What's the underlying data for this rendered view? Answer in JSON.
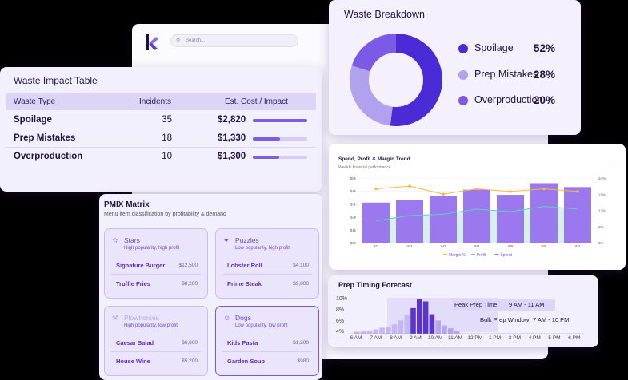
{
  "app": {
    "search_placeholder": "Search..."
  },
  "waste_impact": {
    "title": "Waste Impact Table",
    "columns": [
      "Waste Type",
      "Incidents",
      "Est. Cost / Impact"
    ],
    "rows": [
      {
        "type": "Spoilage",
        "incidents": "35",
        "cost": "$2,820",
        "impact": 1.0
      },
      {
        "type": "Prep Mistakes",
        "incidents": "18",
        "cost": "$1,330",
        "impact": 0.5
      },
      {
        "type": "Overproduction",
        "incidents": "10",
        "cost": "$1,300",
        "impact": 0.48
      }
    ]
  },
  "waste_breakdown": {
    "title": "Waste Breakdown",
    "items": [
      {
        "label": "Spoilage",
        "pct": "52%",
        "value": 52,
        "color": "#4b2bd6"
      },
      {
        "label": "Prep Mistakes",
        "pct": "28%",
        "value": 28,
        "color": "#b2a2ee"
      },
      {
        "label": "Overproduction",
        "pct": "20%",
        "value": 20,
        "color": "#7d5ae6"
      }
    ]
  },
  "spend_chart": {
    "title": "Spend, Profit & Margin Trend",
    "subtitle": "Weekly financial performance",
    "more": "...",
    "chart_data": {
      "type": "bar",
      "categories": [
        "W1",
        "W2",
        "W3",
        "W4",
        "W5",
        "W6",
        "W7"
      ],
      "y_ticks_left": [
        "$0k",
        "$1k",
        "$2k",
        "$3k",
        "$4k",
        "$5k"
      ],
      "y_ticks_right": [
        "0%",
        "6%",
        "12%",
        "18%",
        "24%"
      ],
      "ylim": [
        0,
        5
      ],
      "series": [
        {
          "name": "Spend",
          "values": [
            3.1,
            3.3,
            3.6,
            4.1,
            3.7,
            4.6,
            4.3
          ],
          "color": "#9b78ee"
        },
        {
          "name": "Profit",
          "values": [
            1.7,
            2.1,
            2.2,
            2.6,
            2.4,
            2.8,
            2.6
          ],
          "color": "#5fd0b8"
        },
        {
          "name": "Margin %",
          "values": [
            20,
            21,
            18,
            20,
            19,
            20,
            19
          ],
          "color": "#f5b841"
        }
      ],
      "legend": [
        "Margin %",
        "Profit",
        "Spend"
      ]
    }
  },
  "pmix": {
    "title": "PMIX Matrix",
    "subtitle": "Menu item classification by profitability & demand",
    "quadrants": [
      {
        "title": "Stars",
        "desc": "High popularity, high profit",
        "icon": "☆",
        "items": [
          {
            "name": "Signature Burger",
            "price": "$12,500"
          },
          {
            "name": "Truffle Fries",
            "price": "$8,200"
          }
        ]
      },
      {
        "title": "Puzzles",
        "desc": "Low popularity, high profit",
        "icon": "✦",
        "items": [
          {
            "name": "Lobster Roll",
            "price": "$4,100"
          },
          {
            "name": "Prime Steak",
            "price": "$9,800"
          }
        ]
      },
      {
        "title": "Plowhorses",
        "desc": "High popularity, low profit",
        "icon": "⚒",
        "items": [
          {
            "name": "Caesar Salad",
            "price": "$6,800"
          },
          {
            "name": "House Wine",
            "price": "$5,200"
          }
        ]
      },
      {
        "title": "Dogs",
        "desc": "Low popularity, low profit",
        "icon": "☺",
        "items": [
          {
            "name": "Kids Pasta",
            "price": "$1,200"
          },
          {
            "name": "Garden Soup",
            "price": "$980"
          }
        ]
      }
    ]
  },
  "prep_timing": {
    "title": "Prep Timing Forecast",
    "y_ticks": [
      "10%",
      "8%",
      "6%",
      "4%"
    ],
    "x_ticks": [
      "6 AM",
      "7 AM",
      "8 AM",
      "9 AM",
      "10 AM",
      "11 AM",
      "12 PM",
      "1 PM",
      "3 PM",
      "4 PM",
      "5 PM",
      "6 PM"
    ],
    "peak_label": "Peak Prep Time",
    "peak_value": "9 AM - 11 AM",
    "bulk_label": "Bulk Prep Window",
    "bulk_value": "7 AM - 10 PM",
    "chart_data": {
      "type": "bar",
      "values": [
        4.1,
        4.2,
        4.3,
        4.5,
        4.8,
        5.0,
        5.4,
        6.1,
        7.0,
        8.3,
        9.9,
        9.5,
        7.2,
        6.1,
        5.2,
        4.7,
        4.3
      ]
    }
  }
}
